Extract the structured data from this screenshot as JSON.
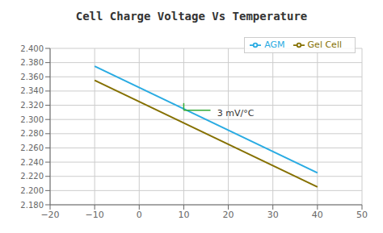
{
  "chart_data": {
    "type": "line",
    "title": "Cell Charge Voltage Vs Temperature",
    "x": [
      -10,
      40
    ],
    "series": [
      {
        "name": "Gel Cell",
        "color": "#857000",
        "values": [
          2.355,
          2.205
        ]
      },
      {
        "name": "AGM",
        "color": "#29ABE2",
        "values": [
          2.375,
          2.225
        ]
      }
    ],
    "xlim": [
      -20,
      50
    ],
    "xticks": [
      {
        "value": -20,
        "label": "−20"
      },
      {
        "value": -10,
        "label": "−10"
      },
      0,
      10,
      20,
      30,
      40,
      50
    ],
    "ylim": [
      2.18,
      2.4
    ],
    "yticks": [
      {
        "value": 2.18,
        "label": "2.180"
      },
      {
        "value": 2.2,
        "label": "2.200"
      },
      {
        "value": 2.22,
        "label": "2.220"
      },
      {
        "value": 2.24,
        "label": "2.240"
      },
      {
        "value": 2.26,
        "label": "2.260"
      },
      {
        "value": 2.28,
        "label": "2.280"
      },
      {
        "value": 2.3,
        "label": "2.300"
      },
      {
        "value": 2.32,
        "label": "2.320"
      },
      {
        "value": 2.34,
        "label": "2.340"
      },
      {
        "value": 2.36,
        "label": "2.360"
      },
      {
        "value": 2.38,
        "label": "2.380"
      },
      {
        "value": 2.4,
        "label": "2.400"
      }
    ],
    "grid": true,
    "legend": "upper right",
    "annotations": [
      {
        "text": "3 mV/°C",
        "x": 17.5,
        "y": 2.308,
        "color": "#333333"
      }
    ],
    "brackets": [
      {
        "x": [
          10,
          10,
          16
        ],
        "y": [
          2.323,
          2.313,
          2.313
        ],
        "color": "#33AA33"
      }
    ]
  }
}
